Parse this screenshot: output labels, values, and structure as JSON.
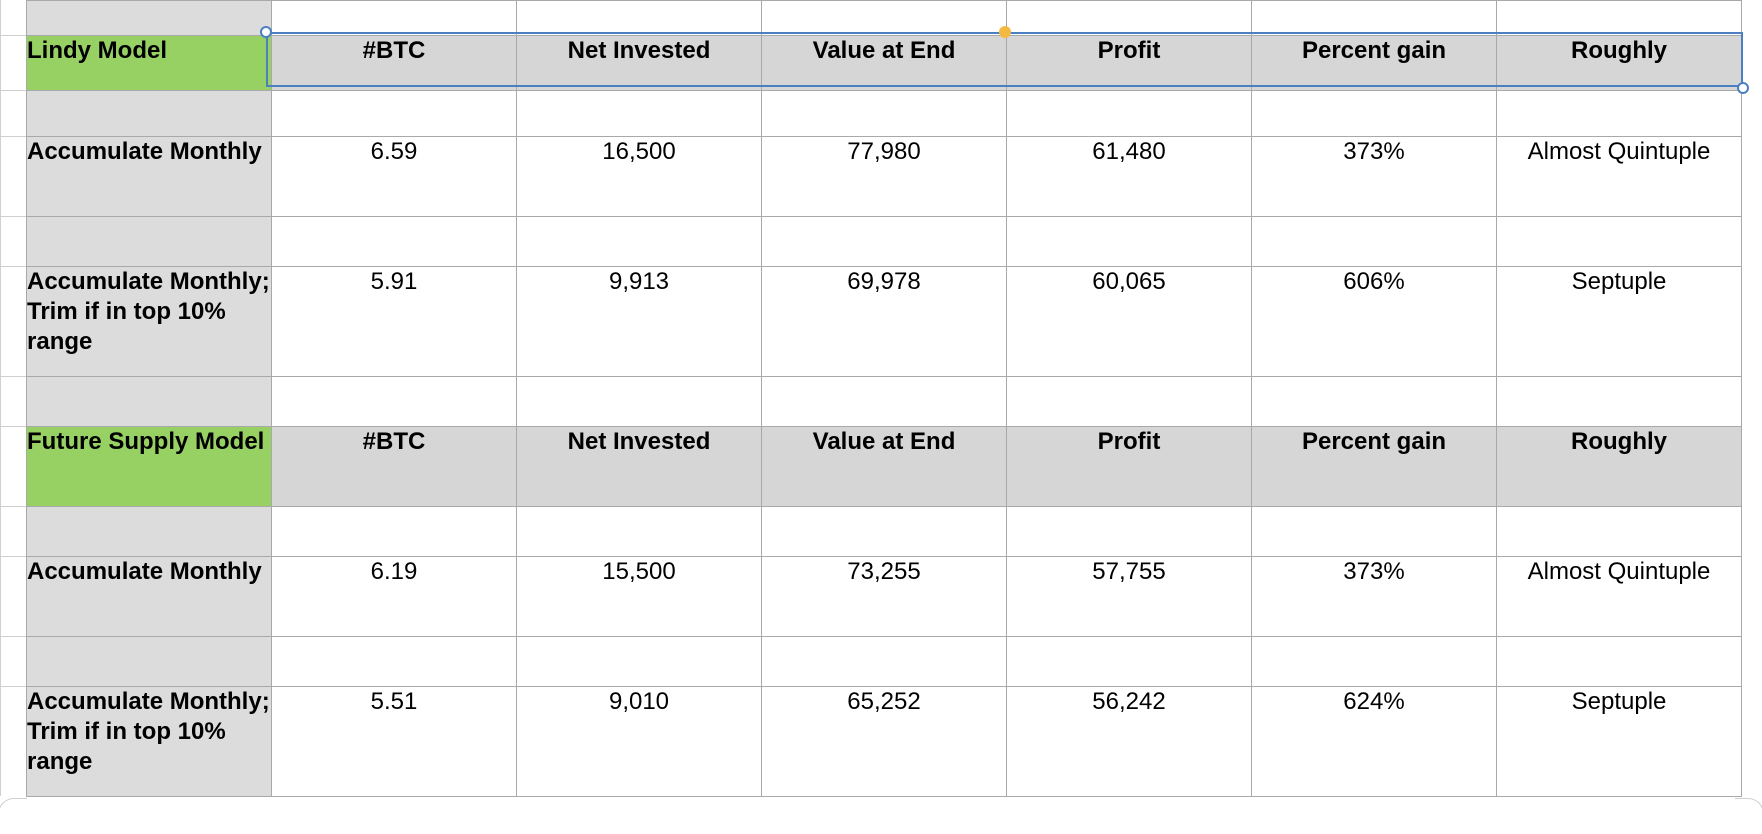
{
  "colors": {
    "model_header_green": "#97d164",
    "header_gray": "#d6d6d6",
    "label_gray": "#dcdcdc",
    "selection_blue": "#4a7fc1",
    "handle_yellow": "#f4b942"
  },
  "table": {
    "columns": [
      "#BTC",
      "Net Invested",
      "Value at End",
      "Profit",
      "Percent gain",
      "Roughly"
    ],
    "sections": [
      {
        "title": "Lindy Model",
        "rows": [
          {
            "label": "Accumulate Monthly",
            "values": [
              "6.59",
              "16,500",
              "77,980",
              "61,480",
              "373%",
              "Almost Quintuple"
            ]
          },
          {
            "label": "Accumulate Monthly; Trim if in top 10% range",
            "values": [
              "5.91",
              "9,913",
              "69,978",
              "60,065",
              "606%",
              "Septuple"
            ]
          }
        ]
      },
      {
        "title": "Future Supply Model",
        "rows": [
          {
            "label": "Accumulate Monthly",
            "values": [
              "6.19",
              "15,500",
              "73,255",
              "57,755",
              "373%",
              "Almost Quintuple"
            ]
          },
          {
            "label": "Accumulate Monthly; Trim if in top 10% range",
            "values": [
              "5.51",
              "9,010",
              "65,252",
              "56,242",
              "624%",
              "Septuple"
            ]
          }
        ]
      }
    ]
  },
  "selection": {
    "selected_range": "header row B:G (Lindy Model)",
    "handles": [
      "resize-handle-top-left",
      "resize-handle-top-middle",
      "resize-handle-bottom-right"
    ]
  }
}
